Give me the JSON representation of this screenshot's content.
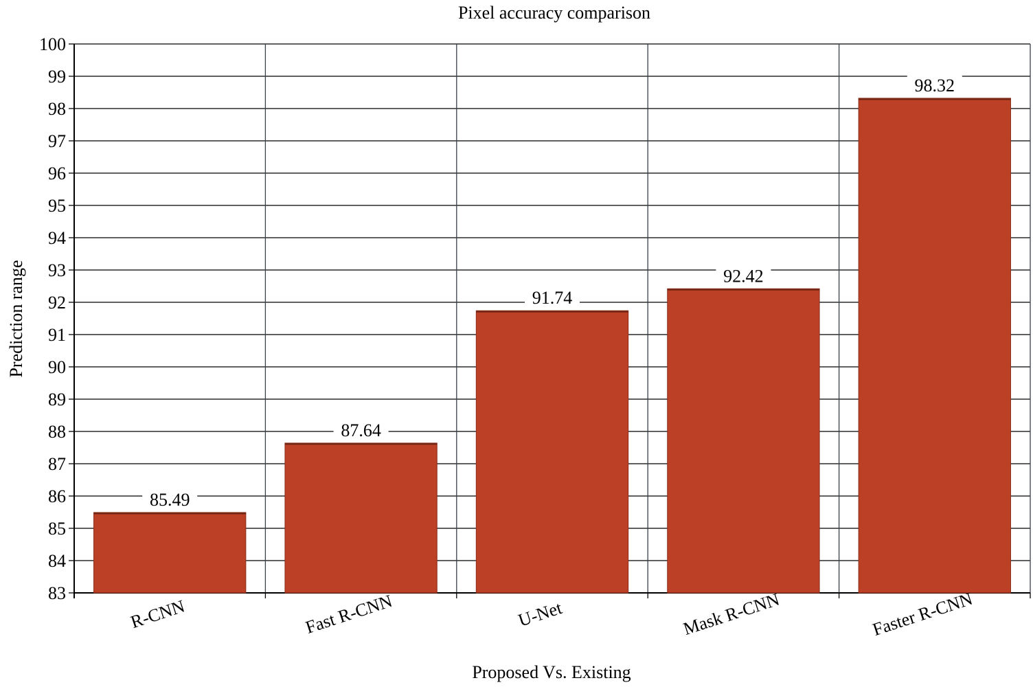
{
  "chart_data": {
    "type": "bar",
    "title": "Pixel accuracy comparison",
    "xlabel": "Proposed Vs. Existing",
    "ylabel": "Prediction range",
    "categories": [
      "R-CNN",
      "Fast R-CNN",
      "U-Net",
      "Mask R-CNN",
      "Faster R-CNN"
    ],
    "values": [
      85.49,
      87.64,
      91.74,
      92.42,
      98.32
    ],
    "value_labels": [
      "85.49",
      "87.64",
      "91.74",
      "92.42",
      "98.32"
    ],
    "ylim": [
      83,
      100
    ],
    "yticks": [
      "83",
      "84",
      "85",
      "86",
      "87",
      "88",
      "89",
      "90",
      "91",
      "92",
      "93",
      "94",
      "95",
      "96",
      "97",
      "98",
      "99",
      "100"
    ],
    "grid": true,
    "legend": "none",
    "bar_color": "#bb4026",
    "bar_edge_color": "#8a2e1a"
  }
}
